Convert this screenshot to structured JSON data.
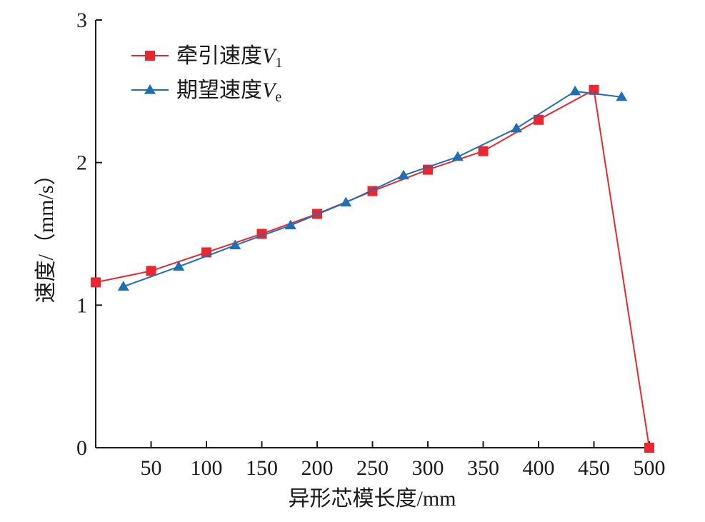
{
  "chart_data": {
    "type": "line",
    "xlabel": "异形芯模长度/mm",
    "ylabel": "速度/（mm/s）",
    "xlim": [
      0,
      500
    ],
    "ylim": [
      0,
      3
    ],
    "x_ticks": [
      50,
      100,
      150,
      200,
      250,
      300,
      350,
      400,
      450,
      500
    ],
    "y_ticks": [
      0,
      1,
      2,
      3
    ],
    "grid": false,
    "legend_position": "top-left",
    "series": [
      {
        "name": "牵引速度V1",
        "legend_main": "牵引速度",
        "legend_var": "V",
        "legend_sub": "1",
        "color": "#e8272e",
        "marker": "square",
        "x": [
          0,
          50,
          100,
          150,
          200,
          250,
          300,
          350,
          400,
          450,
          500
        ],
        "y": [
          1.16,
          1.24,
          1.37,
          1.5,
          1.64,
          1.8,
          1.95,
          2.08,
          2.3,
          2.51,
          0
        ]
      },
      {
        "name": "期望速度Ve",
        "legend_main": "期望速度",
        "legend_var": "V",
        "legend_sub": "e",
        "color": "#1f6fb5",
        "marker": "triangle",
        "x": [
          25,
          75,
          126,
          176,
          226,
          278,
          327,
          380,
          433,
          475
        ],
        "y": [
          1.13,
          1.27,
          1.42,
          1.56,
          1.72,
          1.91,
          2.04,
          2.24,
          2.5,
          2.46
        ]
      }
    ]
  }
}
